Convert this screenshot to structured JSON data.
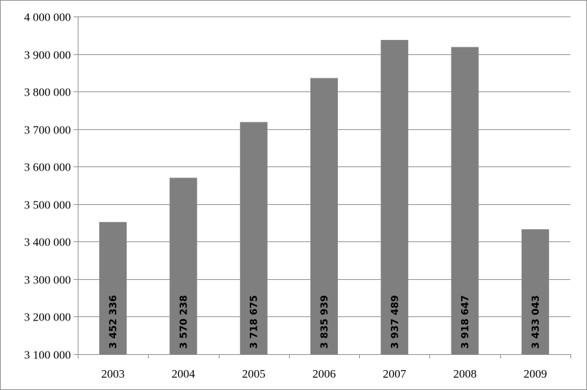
{
  "chart_data": {
    "type": "bar",
    "categories": [
      "2003",
      "2004",
      "2005",
      "2006",
      "2007",
      "2008",
      "2009"
    ],
    "values": [
      3452336,
      3570238,
      3718675,
      3835939,
      3937489,
      3918647,
      3433043
    ],
    "data_labels": [
      "3 452 336",
      "3 570 238",
      "3 718 675",
      "3 835 939",
      "3 937 489",
      "3 918 647",
      "3 433 043"
    ],
    "ylim": [
      3100000,
      4000000
    ],
    "yticks": [
      3100000,
      3200000,
      3300000,
      3400000,
      3500000,
      3600000,
      3700000,
      3800000,
      3900000,
      4000000
    ],
    "ytick_labels": [
      "3 100 000",
      "3 200 000",
      "3 300 000",
      "3 400 000",
      "3 500 000",
      "3 600 000",
      "3 700 000",
      "3 800 000",
      "3 900 000",
      "4 000 000"
    ],
    "grid": true,
    "legend": "none",
    "bar_color": "#7f7f7f",
    "grid_color": "#8c8c8c",
    "title": "",
    "xlabel": "",
    "ylabel": ""
  }
}
